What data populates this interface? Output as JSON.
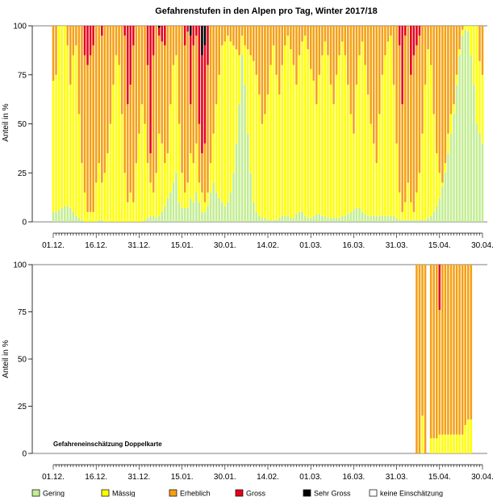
{
  "chart_data": [
    {
      "type": "bar",
      "stacked": true,
      "title": "Gefahrenstufen in den Alpen pro Tag, Winter 2017/18",
      "ylabel": "Anteil in %",
      "ylim": [
        0,
        100
      ],
      "yticks": [
        "0",
        "25",
        "50",
        "75",
        "100"
      ],
      "xtick_labels": [
        "01.12.",
        "16.12.",
        "31.12.",
        "15.01.",
        "30.01.",
        "14.02.",
        "01.03.",
        "16.03.",
        "31.03.",
        "15.04.",
        "30.04."
      ],
      "x_range": [
        "2017-12-01",
        "2018-04-30"
      ],
      "categories_note": "one bar per day, 151 days",
      "series": [
        {
          "name": "Gering",
          "color": "#c2ed92"
        },
        {
          "name": "Mässig",
          "color": "#ffff00"
        },
        {
          "name": "Erheblich",
          "color": "#f5a013"
        },
        {
          "name": "Gross",
          "color": "#e6001c"
        },
        {
          "name": "Sehr Gross",
          "color": "#000000"
        }
      ],
      "breakpoints": [
        [
          0,
          5,
          72,
          100,
          100
        ],
        [
          1,
          5,
          75,
          100,
          100
        ],
        [
          2,
          6,
          100,
          100,
          100
        ],
        [
          3,
          7,
          100,
          100,
          100
        ],
        [
          4,
          8,
          100,
          100,
          100
        ],
        [
          5,
          8,
          90,
          100,
          100
        ],
        [
          6,
          7,
          70,
          100,
          100
        ],
        [
          7,
          5,
          85,
          100,
          100
        ],
        [
          8,
          3,
          90,
          100,
          100
        ],
        [
          9,
          2,
          55,
          100,
          100
        ],
        [
          10,
          1,
          30,
          100,
          100
        ],
        [
          11,
          0,
          15,
          85,
          100
        ],
        [
          12,
          0,
          5,
          80,
          100
        ],
        [
          13,
          0,
          5,
          85,
          100
        ],
        [
          14,
          0,
          5,
          90,
          100
        ],
        [
          15,
          0,
          20,
          100,
          100
        ],
        [
          16,
          1,
          30,
          100,
          100
        ],
        [
          17,
          1,
          20,
          95,
          100
        ],
        [
          18,
          0,
          25,
          100,
          100
        ],
        [
          19,
          0,
          35,
          100,
          100
        ],
        [
          20,
          0,
          50,
          100,
          100
        ],
        [
          21,
          0,
          70,
          100,
          100
        ],
        [
          22,
          0,
          85,
          100,
          100
        ],
        [
          23,
          0,
          80,
          100,
          100
        ],
        [
          24,
          0,
          55,
          100,
          100
        ],
        [
          25,
          0,
          25,
          95,
          100
        ],
        [
          26,
          0,
          10,
          60,
          100
        ],
        [
          27,
          0,
          15,
          70,
          100
        ],
        [
          28,
          0,
          10,
          90,
          100
        ],
        [
          29,
          0,
          30,
          100,
          100
        ],
        [
          30,
          0,
          45,
          100,
          100
        ],
        [
          31,
          0,
          60,
          100,
          100
        ],
        [
          32,
          1,
          50,
          100,
          100
        ],
        [
          33,
          2,
          30,
          80,
          100
        ],
        [
          34,
          3,
          20,
          35,
          100
        ],
        [
          35,
          3,
          15,
          85,
          100
        ],
        [
          36,
          2,
          25,
          100,
          100
        ],
        [
          37,
          3,
          45,
          95,
          99
        ],
        [
          38,
          5,
          40,
          92,
          100
        ],
        [
          39,
          8,
          30,
          90,
          100
        ],
        [
          40,
          12,
          35,
          100,
          100
        ],
        [
          41,
          15,
          60,
          100,
          100
        ],
        [
          42,
          20,
          80,
          100,
          100
        ],
        [
          43,
          25,
          85,
          100,
          100
        ],
        [
          44,
          10,
          50,
          100,
          100
        ],
        [
          45,
          7,
          25,
          100,
          100
        ],
        [
          46,
          7,
          15,
          90,
          100
        ],
        [
          47,
          7,
          20,
          97,
          100
        ],
        [
          48,
          12,
          35,
          60,
          95
        ],
        [
          49,
          10,
          30,
          90,
          100
        ],
        [
          50,
          15,
          40,
          95,
          100
        ],
        [
          51,
          10,
          20,
          50,
          100
        ],
        [
          52,
          5,
          15,
          35,
          85
        ],
        [
          53,
          5,
          10,
          40,
          90
        ],
        [
          54,
          8,
          15,
          80,
          100
        ],
        [
          55,
          15,
          30,
          100,
          100
        ],
        [
          56,
          20,
          45,
          100,
          100
        ],
        [
          57,
          15,
          60,
          100,
          100
        ],
        [
          58,
          12,
          75,
          100,
          100
        ],
        [
          59,
          10,
          90,
          100,
          100
        ],
        [
          60,
          8,
          92,
          100,
          100
        ],
        [
          61,
          10,
          95,
          100,
          100
        ],
        [
          62,
          15,
          92,
          100,
          100
        ],
        [
          63,
          25,
          90,
          100,
          100
        ],
        [
          64,
          40,
          88,
          100,
          100
        ],
        [
          65,
          60,
          85,
          100,
          100
        ],
        [
          66,
          85,
          95,
          100,
          100
        ],
        [
          67,
          70,
          90,
          100,
          100
        ],
        [
          68,
          45,
          88,
          100,
          100
        ],
        [
          69,
          25,
          85,
          100,
          100
        ],
        [
          70,
          10,
          82,
          100,
          100
        ],
        [
          71,
          5,
          75,
          100,
          100
        ],
        [
          72,
          3,
          65,
          100,
          100
        ],
        [
          73,
          2,
          50,
          100,
          100
        ],
        [
          74,
          2,
          55,
          100,
          100
        ],
        [
          75,
          1,
          65,
          100,
          100
        ],
        [
          76,
          1,
          80,
          100,
          100
        ],
        [
          77,
          1,
          90,
          100,
          100
        ],
        [
          78,
          1,
          75,
          100,
          100
        ],
        [
          79,
          2,
          65,
          100,
          100
        ],
        [
          80,
          3,
          80,
          100,
          100
        ],
        [
          81,
          3,
          90,
          100,
          100
        ],
        [
          82,
          3,
          95,
          100,
          100
        ],
        [
          83,
          2,
          88,
          100,
          100
        ],
        [
          84,
          2,
          80,
          100,
          100
        ],
        [
          85,
          4,
          70,
          100,
          100
        ],
        [
          86,
          5,
          85,
          100,
          100
        ],
        [
          87,
          5,
          92,
          100,
          100
        ],
        [
          88,
          3,
          95,
          100,
          100
        ],
        [
          89,
          2,
          88,
          100,
          100
        ],
        [
          90,
          2,
          78,
          100,
          100
        ],
        [
          91,
          3,
          72,
          100,
          100
        ],
        [
          92,
          4,
          60,
          100,
          100
        ],
        [
          93,
          4,
          75,
          100,
          100
        ],
        [
          94,
          3,
          85,
          100,
          100
        ],
        [
          95,
          3,
          92,
          100,
          100
        ],
        [
          96,
          2,
          85,
          100,
          100
        ],
        [
          97,
          2,
          70,
          100,
          100
        ],
        [
          98,
          2,
          60,
          100,
          100
        ],
        [
          99,
          2,
          75,
          100,
          100
        ],
        [
          100,
          2,
          85,
          100,
          100
        ],
        [
          101,
          3,
          92,
          100,
          100
        ],
        [
          102,
          3,
          85,
          100,
          100
        ],
        [
          103,
          4,
          70,
          100,
          100
        ],
        [
          104,
          5,
          55,
          100,
          100
        ],
        [
          105,
          6,
          45,
          100,
          100
        ],
        [
          106,
          7,
          70,
          100,
          100
        ],
        [
          107,
          7,
          85,
          100,
          100
        ],
        [
          108,
          5,
          92,
          100,
          100
        ],
        [
          109,
          4,
          80,
          100,
          100
        ],
        [
          110,
          3,
          65,
          100,
          100
        ],
        [
          111,
          3,
          50,
          100,
          100
        ],
        [
          112,
          3,
          40,
          100,
          100
        ],
        [
          113,
          3,
          30,
          100,
          100
        ],
        [
          114,
          3,
          55,
          100,
          100
        ],
        [
          115,
          3,
          75,
          100,
          100
        ],
        [
          116,
          3,
          85,
          100,
          100
        ],
        [
          117,
          3,
          92,
          100,
          100
        ],
        [
          118,
          3,
          95,
          100,
          100
        ],
        [
          119,
          3,
          70,
          100,
          100
        ],
        [
          120,
          2,
          40,
          100,
          100
        ],
        [
          121,
          1,
          15,
          90,
          100
        ],
        [
          122,
          1,
          5,
          60,
          100
        ],
        [
          123,
          1,
          10,
          95,
          100
        ],
        [
          124,
          1,
          20,
          100,
          100
        ],
        [
          125,
          1,
          10,
          75,
          100
        ],
        [
          126,
          1,
          5,
          85,
          100
        ],
        [
          127,
          1,
          15,
          90,
          100
        ],
        [
          128,
          1,
          25,
          95,
          100
        ],
        [
          129,
          1,
          45,
          100,
          100
        ],
        [
          130,
          1,
          70,
          100,
          100
        ],
        [
          131,
          2,
          88,
          100,
          100
        ],
        [
          132,
          3,
          80,
          100,
          100
        ],
        [
          133,
          5,
          55,
          100,
          100
        ],
        [
          134,
          8,
          35,
          100,
          100
        ],
        [
          135,
          12,
          25,
          100,
          100
        ],
        [
          136,
          18,
          20,
          100,
          100
        ],
        [
          137,
          25,
          30,
          100,
          100
        ],
        [
          138,
          35,
          45,
          100,
          100
        ],
        [
          139,
          45,
          55,
          100,
          100
        ],
        [
          140,
          55,
          60,
          100,
          100
        ],
        [
          141,
          70,
          75,
          100,
          100
        ],
        [
          142,
          85,
          88,
          100,
          100
        ],
        [
          143,
          95,
          98,
          100,
          100
        ],
        [
          144,
          98,
          100,
          100,
          100
        ],
        [
          145,
          97,
          100,
          100,
          100
        ],
        [
          146,
          85,
          100,
          100,
          100
        ],
        [
          147,
          70,
          100,
          100,
          100
        ],
        [
          148,
          50,
          100,
          100,
          100
        ],
        [
          149,
          45,
          82,
          100,
          100
        ],
        [
          150,
          40,
          75,
          100,
          100
        ]
      ],
      "breakpoints_format": "[day_index, Gering_upper, Mässig_upper, Erheblich_upper, Gross_upper] cumulative percent; remainder up to 100 is Sehr Gross"
    },
    {
      "type": "bar",
      "stacked": true,
      "annotation": "Gefahreneinschätzung Doppelkarte",
      "ylabel": "Anteil in %",
      "ylim": [
        0,
        100
      ],
      "yticks": [
        "0",
        "25",
        "50",
        "75",
        "100"
      ],
      "xtick_labels": [
        "01.12.",
        "16.12.",
        "31.12.",
        "15.01.",
        "30.01.",
        "14.02.",
        "01.03.",
        "16.03.",
        "31.03.",
        "15.04.",
        "30.04."
      ],
      "x_range": [
        "2017-12-01",
        "2018-04-30"
      ],
      "breakpoints": [
        [
          127,
          0,
          0,
          100,
          100
        ],
        [
          128,
          0,
          0,
          100,
          100
        ],
        [
          129,
          0,
          20,
          100,
          100
        ],
        [
          130,
          0,
          0,
          100,
          100
        ],
        [
          131,
          0,
          0,
          0,
          0
        ],
        [
          132,
          0,
          8,
          100,
          100
        ],
        [
          133,
          0,
          8,
          100,
          100
        ],
        [
          134,
          0,
          8,
          100,
          100
        ],
        [
          135,
          0,
          10,
          76,
          100
        ],
        [
          136,
          0,
          10,
          100,
          100
        ],
        [
          137,
          0,
          10,
          100,
          100
        ],
        [
          138,
          0,
          10,
          100,
          100
        ],
        [
          139,
          0,
          10,
          100,
          100
        ],
        [
          140,
          0,
          10,
          100,
          100
        ],
        [
          141,
          0,
          10,
          100,
          100
        ],
        [
          142,
          0,
          10,
          100,
          100
        ],
        [
          143,
          0,
          10,
          100,
          100
        ],
        [
          144,
          0,
          15,
          100,
          100
        ],
        [
          145,
          0,
          18,
          100,
          100
        ],
        [
          146,
          0,
          18,
          100,
          100
        ]
      ],
      "breakpoints_format": "[day_index, Gering_upper, Mässig_upper, Erheblich_upper, Gross_upper] cumulative percent; days not listed have no Doppelkarte"
    }
  ],
  "legend": [
    {
      "label": "Gering",
      "color": "#c2ed92"
    },
    {
      "label": "Mässig",
      "color": "#ffff00"
    },
    {
      "label": "Erheblich",
      "color": "#f5a013"
    },
    {
      "label": "Gross",
      "color": "#e6001c"
    },
    {
      "label": "Sehr Gross",
      "color": "#000000"
    },
    {
      "label": "keine Einschätzung",
      "color": "#ffffff"
    }
  ]
}
